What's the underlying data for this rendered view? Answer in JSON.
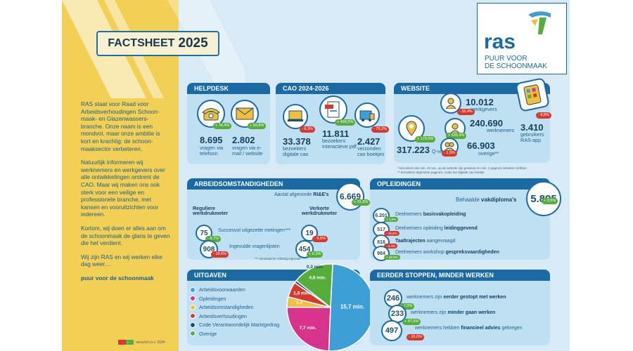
{
  "title_a": "FACTSHEET",
  "title_b": "2025",
  "intro": [
    "RAS staat voor Raad voor Arbeidsverhoudingen Schoon-maak- en Glazenwassers-branche. Onze naam is een mondvol, maar onze ambitie is kort en krachtig: de schoon-maaksector verbeteren.",
    "Natuurlijk informeren wij werknemers en werkgevers over alle ontwikkelingen omtrent de CAO. Maar wij maken ons ook sterk voor een veilige en professionele branche, met kansen en vooruitzichten voor iedereen.",
    "Kortom, wij doen er alles aan om de schoonmaak de glans te geven die het verdient.",
    "Wij zijn RAS en wij werken elke dag weer…",
    "puur voor de schoonmaak"
  ],
  "logo": {
    "name": "ras",
    "sub1": "PUUR VOOR",
    "sub2": "DE SCHOONMAAK"
  },
  "helpdesk": {
    "title": "HELPDESK",
    "phone": {
      "value": "8.695",
      "label": "vragen via telefoon",
      "pct": "+ 74,4%"
    },
    "mail": {
      "value": "2.802",
      "label": "vragen via e-mail / website",
      "pct": "+ 60,8%"
    }
  },
  "cao": {
    "title": "CAO 2024-2026",
    "digital": {
      "value": "33.378",
      "label": "bezoekers digitale cao",
      "pct": "- 6,3%"
    },
    "pdf": {
      "value": "11.811",
      "label": "bezoekers interactieve pdf",
      "pct": "+ 428,5%"
    },
    "booklets": {
      "value": "2.427",
      "label": "verzonden cao boekjes",
      "pct": "- 79,2%"
    }
  },
  "website": {
    "title": "WEBSITE",
    "qvisits": {
      "value": "317.223",
      "label": "Q-visits*",
      "pct": "+ 179,5%"
    },
    "employers": {
      "value": "10.012",
      "label": "werkgevers",
      "pct": "- 10,4%"
    },
    "employees": {
      "value": "240.690",
      "label": "werknemers",
      "pct": "+ 535,9%"
    },
    "other": {
      "value": "66.903",
      "label": "overige**",
      "pct": "- 1,5%"
    },
    "app": {
      "value": "3.410",
      "label": "gebruikers RAS-app",
      "pct": "- 8,8%"
    },
    "note1": "* bezoekers die min. 40 sec. op de website zijn geweest en min. 2 pagina's bekeken hebben",
    "note2": "** bezoekers algemene pagina's, zoals het digitale cao boekje"
  },
  "arbo": {
    "title": "ARBEIDSOMSTANDIGHEDEN",
    "rie_label": "Aantal afgeronde",
    "rie_bold": "RI&E's",
    "rie_value": "6.669",
    "rie_pct": "+ 31,8%",
    "col1": "Reguliere werkdrukmeter",
    "col2": "Verkorte werkdrukmeter",
    "row1": {
      "label": "Succesvol uitgezette metingen***",
      "v1": "75",
      "p1": "- 8,7%",
      "v2": "19",
      "p2": "- 9,5%"
    },
    "row2": {
      "label": "Ingevulde vragenlijsten",
      "v1": "908",
      "p1": "- 18,6%",
      "v2": "454",
      "p2": "+ 6,2%"
    },
    "note": "*** minimaal 5x volledig ingevuld"
  },
  "opleidingen": {
    "title": "OPLEIDINGEN",
    "diploma_label": "Behaalde",
    "diploma_bold": "vakdiploma's",
    "diploma_value": "5.895",
    "diploma_pct": "+ 3,5%",
    "rows": [
      {
        "value": "6.201",
        "pre": "Deelnemers",
        "bold": "basisvakopleiding",
        "post": "",
        "pct": "+ 1,6%",
        "dir": "up"
      },
      {
        "value": "517",
        "pre": "Deelnemers opleiding",
        "bold": "leidinggevend",
        "post": "",
        "pct": "- 16,2%",
        "dir": "down"
      },
      {
        "value": "816",
        "pre": "",
        "bold": "Taaltrajecten",
        "post": "aangevraagd",
        "pct": "- 5,4%",
        "dir": "down"
      },
      {
        "value": "984",
        "pre": "Deelnemers workshop",
        "bold": "gespreksvaardigheden",
        "post": "",
        "pct": "+ 46,0%",
        "dir": "up"
      }
    ]
  },
  "uitgaven": {
    "title": "UITGAVEN",
    "legend": [
      {
        "label": "Arbeidsvoorwaarden",
        "color": "#3d9fd6"
      },
      {
        "label": "Opleidingen",
        "color": "#d8338a"
      },
      {
        "label": "Arbeidsomstandigheden",
        "color": "#f0bf3c"
      },
      {
        "label": "Arbeidsverhoudingen",
        "color": "#d53a30"
      },
      {
        "label": "Code Verantwoordelijk Marktgedrag",
        "color": "#1b4f73"
      },
      {
        "label": "Overige",
        "color": "#57ad3c"
      }
    ]
  },
  "chart_data": {
    "type": "pie",
    "unit": "min.",
    "slices": [
      {
        "label": "Arbeidsvoorwaarden",
        "value": 15.7,
        "text": "15,7 min.",
        "color": "#3d9fd6"
      },
      {
        "label": "Opleidingen",
        "value": 7.7,
        "text": "7,7 min.",
        "color": "#d8338a"
      },
      {
        "label": "Arbeidsomstandigheden",
        "value": 1.2,
        "text": "1,2",
        "color": "#f0bf3c"
      },
      {
        "label": "Arbeidsverhoudingen",
        "value": 1.8,
        "text": "1,8 min.",
        "color": "#d53a30"
      },
      {
        "label": "Code Verantwoordelijk Marktgedrag",
        "value": 0.3,
        "text": "0,3 min.",
        "color": "#1b4f73"
      },
      {
        "label": "Overige",
        "value": 4.8,
        "text": "4,8 min.",
        "color": "#57ad3c"
      }
    ]
  },
  "eerder": {
    "title": "EERDER STOPPEN, MINDER WERKEN",
    "rows": [
      {
        "value": "246",
        "pre": "werknemers zijn",
        "bold": "eerder gestopt met werken",
        "post": "",
        "pct": "+ 7,0%"
      },
      {
        "value": "233",
        "pre": "werknemers zijn",
        "bold": "minder gaan werken",
        "post": "",
        "pct": "+ 47,5%"
      },
      {
        "value": "497",
        "pre": "werknemers hebben",
        "bold": "financieel advies",
        "post": "gekregen",
        "pct": "- 10,0%"
      }
    ]
  },
  "footer": {
    "text": "verschil t.o.v. 2024",
    "flag_down": "-",
    "flag_up": "+"
  }
}
